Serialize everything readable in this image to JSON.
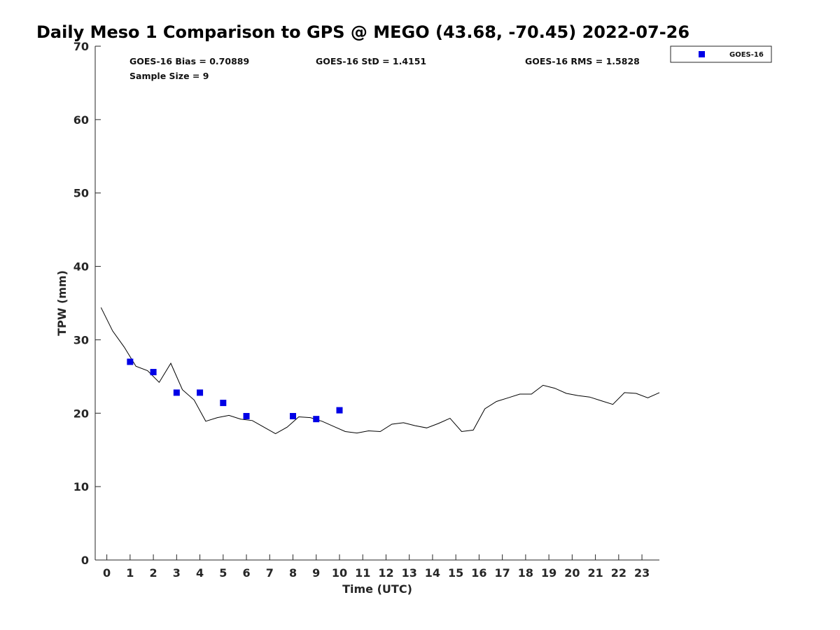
{
  "chart_data": {
    "type": "scatter",
    "title": "Daily Meso 1 Comparison to GPS @ MEGO (43.68, -70.45) 2022-07-26",
    "xlabel": "Time (UTC)",
    "ylabel": "TPW (mm)",
    "xlim": [
      -0.5,
      23.75
    ],
    "ylim": [
      0,
      70
    ],
    "x_ticks": [
      0,
      1,
      2,
      3,
      4,
      5,
      6,
      7,
      8,
      9,
      10,
      11,
      12,
      13,
      14,
      15,
      16,
      17,
      18,
      19,
      20,
      21,
      22,
      23
    ],
    "y_ticks": [
      0,
      10,
      20,
      30,
      40,
      50,
      60,
      70
    ],
    "grid": false,
    "legend_position": "top-right, outside plot",
    "stats": {
      "bias": "GOES-16 Bias = 0.70889",
      "std": "GOES-16 StD = 1.4151",
      "rms": "GOES-16 RMS = 1.5828",
      "sample_size": "Sample Size = 9"
    },
    "series": [
      {
        "name": "GOES-16",
        "kind": "scatter",
        "marker": "square",
        "color": "#0000e6",
        "points": [
          [
            1,
            27.0
          ],
          [
            2,
            25.6
          ],
          [
            3,
            22.8
          ],
          [
            4,
            22.8
          ],
          [
            5,
            21.4
          ],
          [
            6,
            19.6
          ],
          [
            8,
            19.6
          ],
          [
            9,
            19.2
          ],
          [
            10,
            20.4
          ]
        ]
      },
      {
        "kind": "line",
        "color": "#000000",
        "points": [
          [
            -0.25,
            34.4
          ],
          [
            0.25,
            31.2
          ],
          [
            0.75,
            29.0
          ],
          [
            1.25,
            26.4
          ],
          [
            1.75,
            25.8
          ],
          [
            2.25,
            24.2
          ],
          [
            2.75,
            26.8
          ],
          [
            3.25,
            23.2
          ],
          [
            3.75,
            21.8
          ],
          [
            4.25,
            18.9
          ],
          [
            4.75,
            19.4
          ],
          [
            5.25,
            19.7
          ],
          [
            5.75,
            19.2
          ],
          [
            6.25,
            19.0
          ],
          [
            6.75,
            18.1
          ],
          [
            7.25,
            17.2
          ],
          [
            7.75,
            18.1
          ],
          [
            8.25,
            19.5
          ],
          [
            8.75,
            19.4
          ],
          [
            9.25,
            18.9
          ],
          [
            9.75,
            18.2
          ],
          [
            10.25,
            17.5
          ],
          [
            10.75,
            17.3
          ],
          [
            11.25,
            17.6
          ],
          [
            11.75,
            17.5
          ],
          [
            12.25,
            18.5
          ],
          [
            12.75,
            18.7
          ],
          [
            13.25,
            18.3
          ],
          [
            13.75,
            18.0
          ],
          [
            14.25,
            18.6
          ],
          [
            14.75,
            19.3
          ],
          [
            15.25,
            17.5
          ],
          [
            15.75,
            17.7
          ],
          [
            16.25,
            20.6
          ],
          [
            16.75,
            21.6
          ],
          [
            17.25,
            22.1
          ],
          [
            17.75,
            22.6
          ],
          [
            18.25,
            22.6
          ],
          [
            18.75,
            23.8
          ],
          [
            19.25,
            23.4
          ],
          [
            19.75,
            22.7
          ],
          [
            20.25,
            22.4
          ],
          [
            20.75,
            22.2
          ],
          [
            21.25,
            21.7
          ],
          [
            21.75,
            21.2
          ],
          [
            22.25,
            22.8
          ],
          [
            22.75,
            22.7
          ],
          [
            23.25,
            22.1
          ],
          [
            23.75,
            22.8
          ]
        ]
      }
    ]
  }
}
